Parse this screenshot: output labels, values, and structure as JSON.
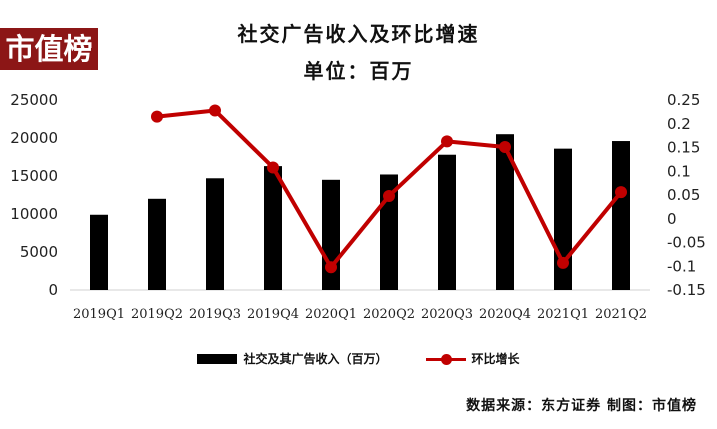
{
  "logo_text": "市值榜",
  "source_text": "数据来源：东方证券  制图：市值榜",
  "colors": {
    "bar": "#000000",
    "line": "#c00000",
    "logo_bg": "#8c1616"
  },
  "chart_data": {
    "type": "bar",
    "title": "社交广告收入及环比增速",
    "subtitle": "单位：百万",
    "categories": [
      "2019Q1",
      "2019Q2",
      "2019Q3",
      "2019Q4",
      "2020Q1",
      "2020Q2",
      "2020Q3",
      "2020Q4",
      "2021Q1",
      "2021Q2"
    ],
    "series": [
      {
        "name": "社交及其广告收入（百万）",
        "type": "bar",
        "axis": "left",
        "values": [
          9900,
          12000,
          14700,
          16300,
          14500,
          15200,
          17800,
          20500,
          18600,
          19600
        ]
      },
      {
        "name": "环比增长",
        "type": "line",
        "axis": "right",
        "values": [
          null,
          0.215,
          0.228,
          0.108,
          -0.102,
          0.048,
          0.163,
          0.151,
          -0.093,
          0.056
        ]
      }
    ],
    "y_left": {
      "min": 0,
      "max": 25000,
      "ticks": [
        "0",
        "5000",
        "10000",
        "15000",
        "20000",
        "25000"
      ]
    },
    "y_right": {
      "min": -0.15,
      "max": 0.25,
      "ticks": [
        "-0.15",
        "-0.1",
        "-0.05",
        "0",
        "0.05",
        "0.1",
        "0.15",
        "0.2",
        "0.25"
      ]
    },
    "legend_position": "bottom",
    "grid": false
  }
}
